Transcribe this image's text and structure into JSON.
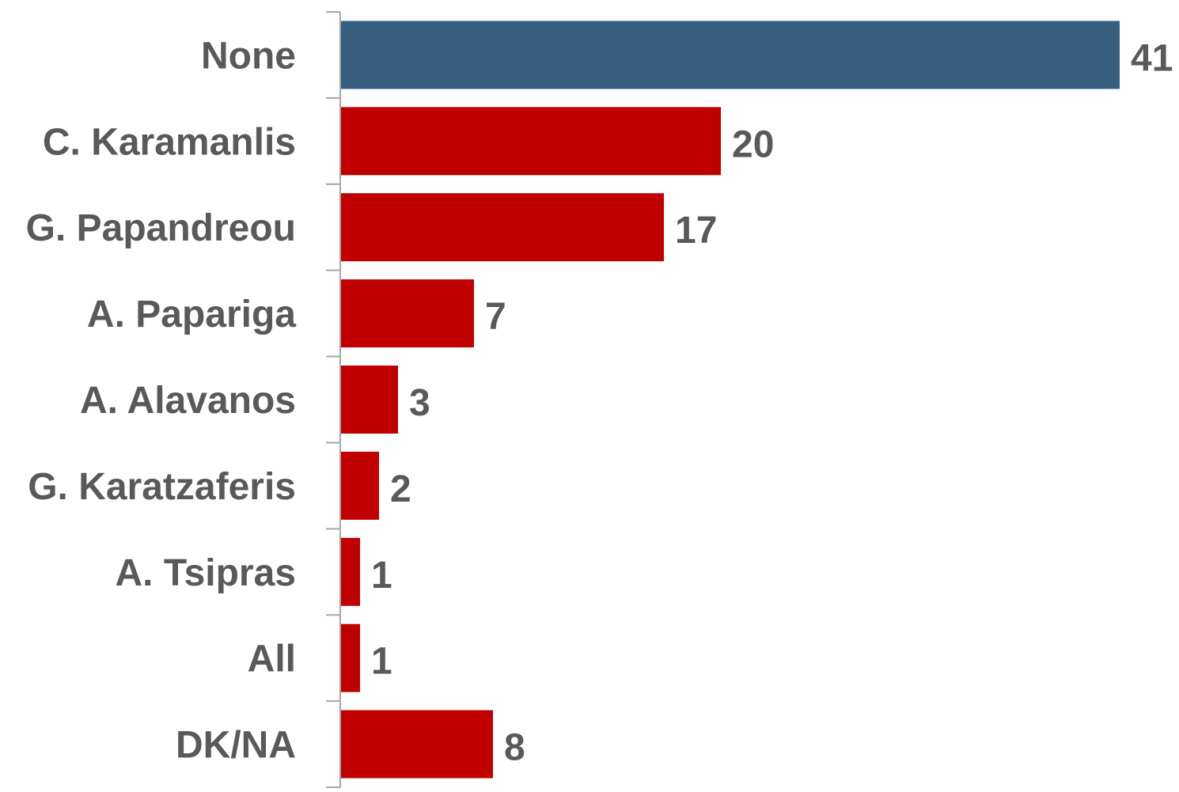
{
  "chart_data": {
    "type": "bar",
    "orientation": "horizontal",
    "title": "",
    "xlabel": "",
    "ylabel": "",
    "categories": [
      "None",
      "C. Karamanlis",
      "G. Papandreou",
      "A. Papariga",
      "A. Alavanos",
      "G. Karatzaferis",
      "A. Tsipras",
      "All",
      "DK/NA"
    ],
    "values": [
      41,
      20,
      17,
      7,
      3,
      2,
      1,
      1,
      8
    ],
    "value_labels": [
      "41",
      "20",
      "17",
      "7",
      "3",
      "2",
      "1",
      "1",
      "8"
    ],
    "colors": [
      "#365f7f",
      "#c00000",
      "#c00000",
      "#c00000",
      "#c00000",
      "#c00000",
      "#c00000",
      "#c00000",
      "#c00000"
    ],
    "xlim": [
      0,
      41
    ],
    "grid": false,
    "legend": "none"
  }
}
